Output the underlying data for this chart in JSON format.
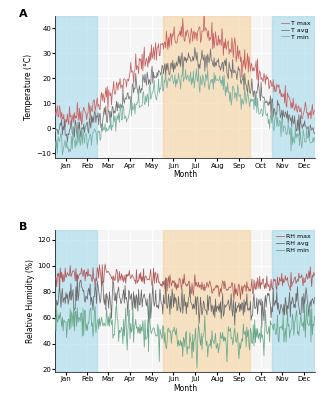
{
  "panel_A": {
    "title": "A",
    "ylabel": "Temperature (°C)",
    "xlabel": "Month",
    "ylim": [
      -12,
      45
    ],
    "yticks": [
      -10,
      0,
      10,
      20,
      30,
      40
    ],
    "legend_labels": [
      "T max",
      "T avg",
      "T min"
    ],
    "legend_colors": [
      "#d06060",
      "#707070",
      "#70b0a0"
    ]
  },
  "panel_B": {
    "title": "B",
    "ylabel": "Relative Humidity (%)",
    "xlabel": "Month",
    "ylim": [
      18,
      128
    ],
    "yticks": [
      20,
      40,
      60,
      80,
      100,
      120
    ],
    "legend_labels": [
      "RH max",
      "RH avg",
      "RH min"
    ],
    "legend_colors": [
      "#b05050",
      "#606060",
      "#60a080"
    ]
  },
  "months": [
    "Jan",
    "Feb",
    "Mar",
    "Apr",
    "May",
    "Jun",
    "Jul",
    "Aug",
    "Sep",
    "Oct",
    "Nov",
    "Dec"
  ],
  "blue_color": "#aadcec",
  "orange_color": "#f5d5a5",
  "blue_alpha": 0.65,
  "orange_alpha": 0.65,
  "bg_color": "#f5f5f5",
  "grid_color": "#ffffff",
  "seed": 42,
  "t_max_winter": 5,
  "t_max_summer": 38,
  "t_avg_winter": -1,
  "t_avg_summer": 28,
  "t_min_winter": -6,
  "t_min_summer": 20,
  "rh_max_mean": 88,
  "rh_avg_mean": 72,
  "rh_min_mean": 50
}
